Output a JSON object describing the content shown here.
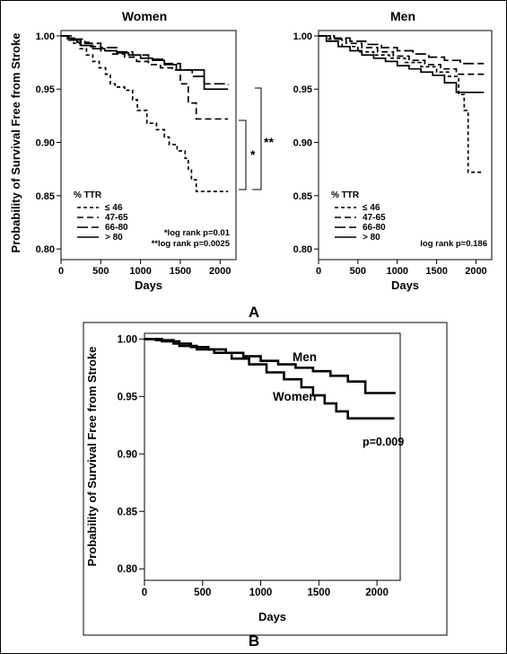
{
  "panel_labels": {
    "a": "A",
    "b": "B"
  },
  "chart_data": [
    {
      "type": "line",
      "step": true,
      "title": "Women",
      "xlabel": "Days",
      "ylabel": "Probability of Survival Free from Stroke",
      "xlim": [
        0,
        2200
      ],
      "ylim": [
        0.79,
        1.005
      ],
      "xticks": [
        0,
        500,
        1000,
        1500,
        2000
      ],
      "yticks": [
        "0.80",
        "0.85",
        "0.90",
        "0.95",
        "1.00"
      ],
      "legend": {
        "title": "% TTR",
        "position": "bottom-left"
      },
      "series": [
        {
          "name": "≤ 46",
          "dash": "short",
          "x": [
            0,
            80,
            160,
            240,
            320,
            400,
            480,
            560,
            620,
            680,
            800,
            900,
            960,
            1080,
            1200,
            1300,
            1360,
            1460,
            1560,
            1600,
            1640,
            1700,
            2100
          ],
          "y": [
            1.0,
            0.997,
            0.993,
            0.988,
            0.982,
            0.976,
            0.97,
            0.964,
            0.955,
            0.952,
            0.949,
            0.94,
            0.93,
            0.918,
            0.912,
            0.905,
            0.898,
            0.892,
            0.885,
            0.875,
            0.865,
            0.854,
            0.854
          ]
        },
        {
          "name": "47-65",
          "dash": "medium",
          "x": [
            0,
            100,
            200,
            350,
            500,
            650,
            800,
            950,
            1100,
            1250,
            1400,
            1500,
            1600,
            1700,
            2100
          ],
          "y": [
            1.0,
            0.998,
            0.994,
            0.99,
            0.986,
            0.983,
            0.98,
            0.976,
            0.973,
            0.97,
            0.968,
            0.955,
            0.937,
            0.922,
            0.922
          ]
        },
        {
          "name": "66-80",
          "dash": "long",
          "x": [
            0,
            150,
            300,
            500,
            700,
            900,
            1100,
            1300,
            1500,
            1650,
            1800,
            2100
          ],
          "y": [
            1.0,
            0.997,
            0.993,
            0.989,
            0.985,
            0.982,
            0.978,
            0.974,
            0.968,
            0.962,
            0.955,
            0.954
          ]
        },
        {
          "name": "> 80",
          "dash": "solid",
          "x": [
            0,
            100,
            250,
            400,
            550,
            700,
            850,
            1000,
            1150,
            1300,
            1450,
            1600,
            1800,
            2100
          ],
          "y": [
            1.0,
            0.996,
            0.991,
            0.988,
            0.986,
            0.984,
            0.982,
            0.979,
            0.977,
            0.973,
            0.968,
            0.968,
            0.95,
            0.95
          ]
        }
      ],
      "annotations": [
        "*log rank p=0.01",
        "**log rank p=0.0025"
      ],
      "brackets": [
        "*",
        "**"
      ]
    },
    {
      "type": "line",
      "step": true,
      "title": "Men",
      "xlabel": "Days",
      "xlim": [
        0,
        2200
      ],
      "ylim": [
        0.79,
        1.005
      ],
      "xticks": [
        0,
        500,
        1000,
        1500,
        2000
      ],
      "yticks": [
        "0.80",
        "0.85",
        "0.90",
        "0.95",
        "1.00"
      ],
      "legend": {
        "title": "% TTR",
        "position": "bottom-left"
      },
      "series": [
        {
          "name": "≤ 46",
          "dash": "short",
          "x": [
            0,
            100,
            300,
            500,
            700,
            900,
            1100,
            1300,
            1500,
            1650,
            1780,
            1850,
            1900,
            2100
          ],
          "y": [
            1.0,
            0.997,
            0.99,
            0.985,
            0.982,
            0.979,
            0.975,
            0.971,
            0.966,
            0.962,
            0.945,
            0.93,
            0.872,
            0.872
          ]
        },
        {
          "name": "47-65",
          "dash": "medium",
          "x": [
            0,
            150,
            350,
            550,
            750,
            950,
            1150,
            1350,
            1550,
            1750,
            2100
          ],
          "y": [
            1.0,
            0.997,
            0.993,
            0.989,
            0.985,
            0.981,
            0.977,
            0.973,
            0.969,
            0.964,
            0.964
          ]
        },
        {
          "name": "66-80",
          "dash": "long",
          "x": [
            0,
            200,
            400,
            600,
            800,
            1000,
            1200,
            1400,
            1600,
            1800,
            2100
          ],
          "y": [
            1.0,
            0.998,
            0.995,
            0.992,
            0.989,
            0.986,
            0.983,
            0.98,
            0.977,
            0.974,
            0.974
          ]
        },
        {
          "name": "> 80",
          "dash": "solid",
          "x": [
            0,
            100,
            250,
            400,
            550,
            700,
            850,
            1000,
            1150,
            1300,
            1450,
            1600,
            1750,
            2100
          ],
          "y": [
            1.0,
            0.995,
            0.99,
            0.986,
            0.982,
            0.979,
            0.976,
            0.972,
            0.969,
            0.966,
            0.963,
            0.956,
            0.947,
            0.947
          ]
        }
      ],
      "annotations": [
        "log rank p=0.186"
      ]
    },
    {
      "type": "line",
      "step": true,
      "xlabel": "Days",
      "ylabel": "Probability of Survival Free from Stroke",
      "xlim": [
        0,
        2200
      ],
      "ylim": [
        0.79,
        1.005
      ],
      "xticks": [
        0,
        500,
        1000,
        1500,
        2000
      ],
      "yticks": [
        "0.80",
        "0.85",
        "0.90",
        "0.95",
        "1.00"
      ],
      "series": [
        {
          "name": "Men",
          "x": [
            0,
            100,
            250,
            400,
            550,
            700,
            850,
            1000,
            1150,
            1300,
            1450,
            1600,
            1750,
            1900,
            2150
          ],
          "y": [
            1.0,
            0.999,
            0.996,
            0.993,
            0.991,
            0.988,
            0.985,
            0.981,
            0.978,
            0.975,
            0.972,
            0.968,
            0.963,
            0.953,
            0.952
          ]
        },
        {
          "name": "Women",
          "x": [
            0,
            150,
            300,
            450,
            600,
            750,
            900,
            1050,
            1200,
            1350,
            1450,
            1550,
            1650,
            1750,
            2150
          ],
          "y": [
            1.0,
            0.998,
            0.994,
            0.991,
            0.988,
            0.983,
            0.978,
            0.971,
            0.965,
            0.958,
            0.951,
            0.944,
            0.937,
            0.931,
            0.931
          ]
        }
      ],
      "annotations": [
        "p=0.009"
      ]
    }
  ]
}
